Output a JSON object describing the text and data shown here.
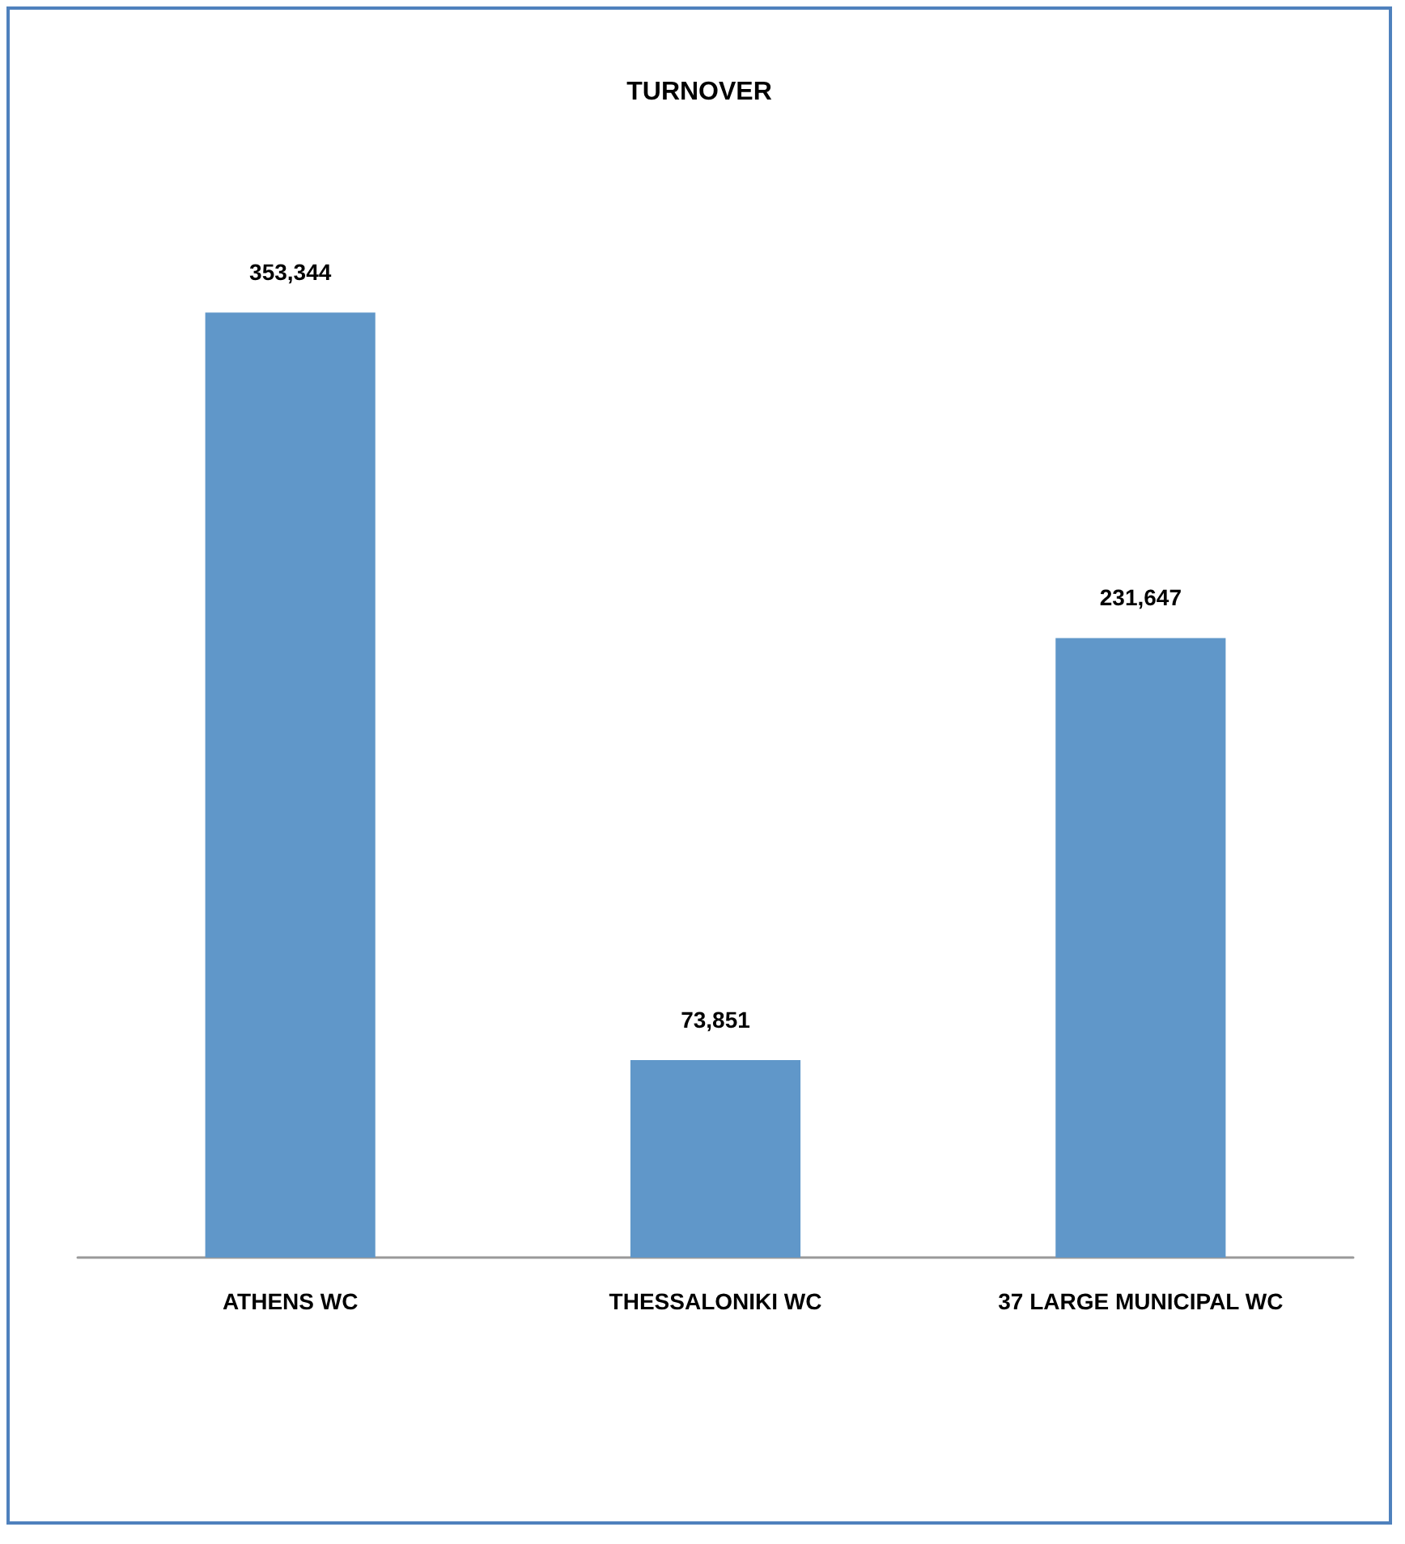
{
  "chart_data": {
    "type": "bar",
    "title": "TURNOVER",
    "categories": [
      "ATHENS WC",
      "THESSALONIKI WC",
      "37 LARGE MUNICIPAL WC"
    ],
    "values": [
      353344,
      73851,
      231647
    ],
    "value_labels": [
      "353,344",
      "73,851",
      "231,647"
    ],
    "color": "#6097c9",
    "tick_labels": "x"
  }
}
